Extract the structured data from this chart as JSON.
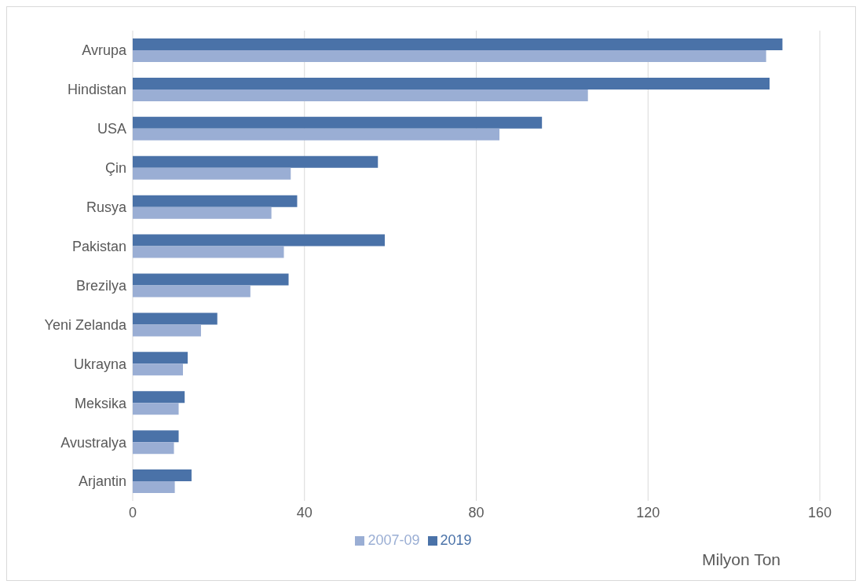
{
  "chart_data": {
    "type": "bar",
    "orientation": "horizontal",
    "xlabel": "Milyon Ton",
    "categories": [
      "Avrupa",
      "Hindistan",
      "USA",
      "Çin",
      "Rusya",
      "Pakistan",
      "Brezilya",
      "Yeni Zelanda",
      "Ukrayna",
      "Meksika",
      "Avustralya",
      "Arjantin"
    ],
    "series": [
      {
        "name": "2019",
        "color": "#4a72a8",
        "values": [
          151.3,
          148.3,
          95.3,
          57.1,
          38.3,
          58.7,
          36.3,
          19.7,
          12.8,
          12.1,
          10.7,
          13.7
        ]
      },
      {
        "name": "2007-09",
        "color": "#9aaed4",
        "values": [
          147.5,
          106.0,
          85.4,
          36.8,
          32.3,
          35.2,
          27.4,
          15.9,
          11.7,
          10.7,
          9.6,
          9.8
        ]
      }
    ],
    "xlim": [
      0,
      160
    ],
    "xticks": [
      0,
      40,
      80,
      120,
      160
    ],
    "grid": "x",
    "legend": "bottom"
  }
}
